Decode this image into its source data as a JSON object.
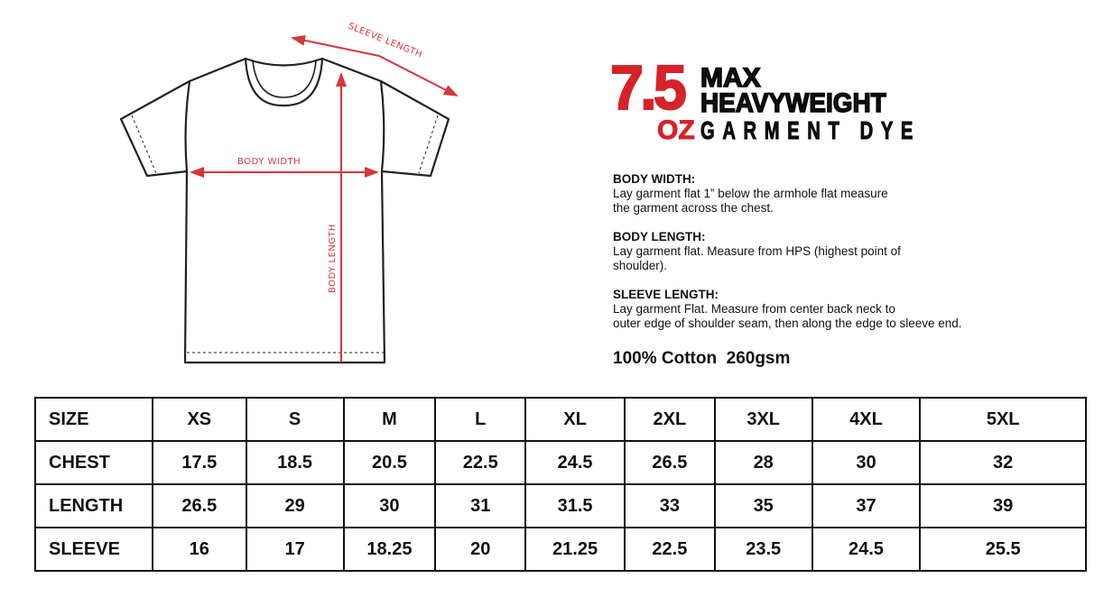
{
  "diagram": {
    "labels": {
      "sleeve_length": "SLEEVE LENGTH",
      "body_width": "BODY WIDTH",
      "body_length": "BODY LENGTH"
    },
    "accent_color": "#d6363b"
  },
  "logo": {
    "weight": "7.5",
    "unit": "OZ",
    "line1": "MAX",
    "line2": "HEAVYWEIGHT",
    "line3": "GARMENT DYE",
    "red": "#d6232a"
  },
  "descriptions": [
    {
      "title": "BODY WIDTH:",
      "lines": [
        "Lay garment flat 1” below the armhole flat measure",
        "the garment across the chest."
      ]
    },
    {
      "title": "BODY LENGTH:",
      "lines": [
        "Lay garment flat. Measure from HPS (highest point of",
        "shoulder)."
      ]
    },
    {
      "title": "SLEEVE LENGTH:",
      "lines": [
        "Lay garment Flat. Measure from center back neck to",
        "outer edge of shoulder seam, then along the edge to sleeve end."
      ]
    }
  ],
  "material": "100% Cotton  260gsm",
  "size_table": {
    "header": [
      "SIZE",
      "XS",
      "S",
      "M",
      "L",
      "XL",
      "2XL",
      "3XL",
      "4XL",
      "5XL"
    ],
    "rows": [
      [
        "CHEST",
        "17.5",
        "18.5",
        "20.5",
        "22.5",
        "24.5",
        "26.5",
        "28",
        "30",
        "32"
      ],
      [
        "LENGTH",
        "26.5",
        "29",
        "30",
        "31",
        "31.5",
        "33",
        "35",
        "37",
        "39"
      ],
      [
        "SLEEVE",
        "16",
        "17",
        "18.25",
        "20",
        "21.25",
        "22.5",
        "23.5",
        "24.5",
        "25.5"
      ]
    ]
  }
}
